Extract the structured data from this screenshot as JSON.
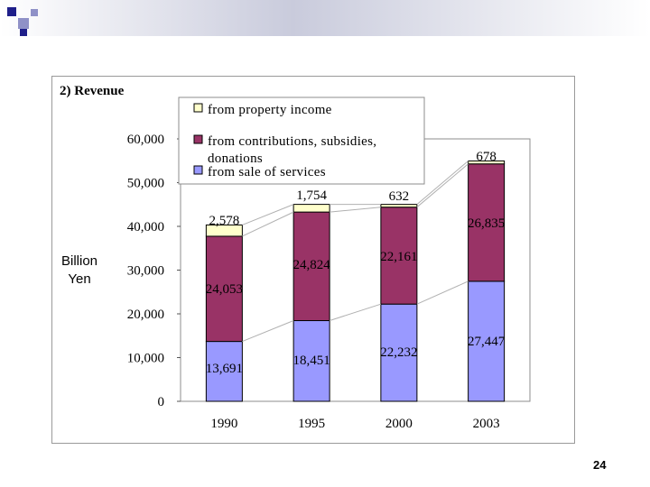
{
  "slide": {
    "page_number": "24"
  },
  "colors": {
    "property_income": "#ffffcc",
    "contributions": "#993366",
    "services": "#9999ff",
    "deco_dark": "#1f1f8a",
    "deco_light": "#8f91c7"
  },
  "chart_data": {
    "type": "bar",
    "stacked": true,
    "title": "2) Revenue",
    "xlabel": "",
    "ylabel": "Billion Yen",
    "ylabel_lines": [
      "Billion",
      "Yen"
    ],
    "ylim": [
      0,
      60000
    ],
    "yticks": [
      0,
      10000,
      20000,
      30000,
      40000,
      50000,
      60000
    ],
    "ytick_labels": [
      "0",
      "10,000",
      "20,000",
      "30,000",
      "40,000",
      "50,000",
      "60,000"
    ],
    "categories": [
      "1990",
      "1995",
      "2000",
      "2003"
    ],
    "series": [
      {
        "name": "from sale of services",
        "color": "#9999ff",
        "values": [
          13691,
          18451,
          22232,
          27447
        ],
        "labels": [
          "13,691",
          "18,451",
          "22,232",
          "27,447"
        ]
      },
      {
        "name": "from contributions, subsidies, donations",
        "color": "#993366",
        "values": [
          24053,
          24824,
          22161,
          26835
        ],
        "labels": [
          "24,053",
          "24,824",
          "22,161",
          "26,835"
        ]
      },
      {
        "name": "from property income",
        "color": "#ffffcc",
        "values": [
          2578,
          1754,
          632,
          678
        ],
        "labels": [
          "2,578",
          "1,754",
          "632",
          "678"
        ]
      }
    ],
    "legend": {
      "placement": "top-center",
      "entries": [
        {
          "lines": [
            "from property income"
          ],
          "color": "#ffffcc"
        },
        {
          "lines": [
            "from contributions, subsidies,",
            "donations"
          ],
          "color": "#993366"
        },
        {
          "lines": [
            "from sale of services"
          ],
          "color": "#9999ff"
        }
      ]
    }
  }
}
